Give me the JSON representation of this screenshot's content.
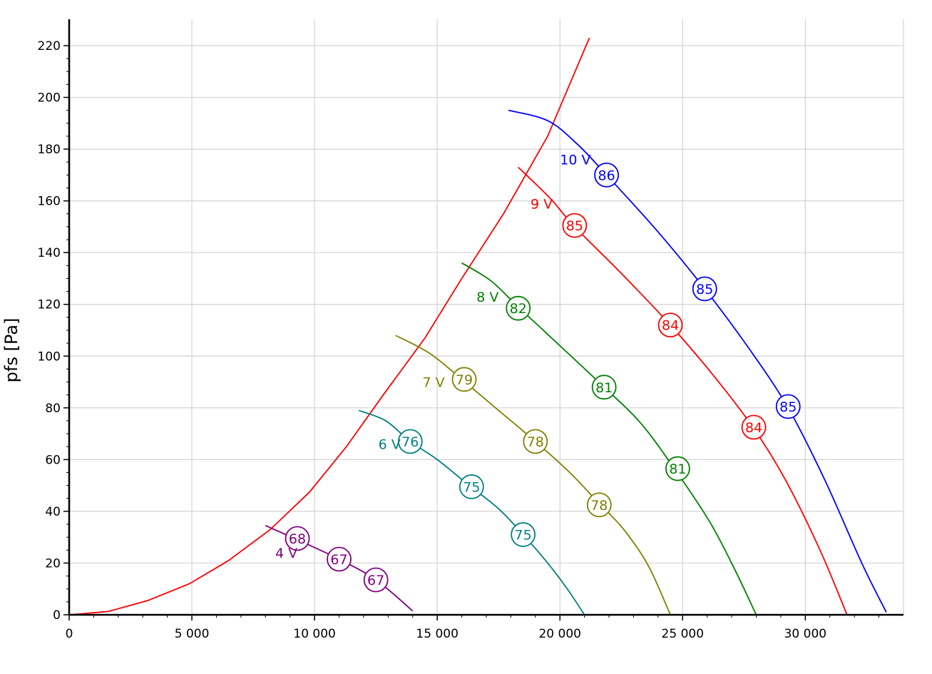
{
  "chart_data": {
    "type": "line",
    "ylabel": "pfs [Pa]",
    "xlabel": "",
    "xlim": [
      0,
      34000
    ],
    "ylim": [
      0,
      220
    ],
    "x_ticks": [
      0,
      5000,
      10000,
      15000,
      20000,
      25000,
      30000
    ],
    "x_tick_labels": [
      "0",
      "5 000",
      "10 000",
      "15 000",
      "20 000",
      "25 000",
      "30 000"
    ],
    "y_ticks": [
      0,
      20,
      40,
      60,
      80,
      100,
      120,
      140,
      160,
      180,
      200,
      220
    ],
    "y_tick_labels": [
      "0",
      "20",
      "40",
      "60",
      "80",
      "100",
      "120",
      "140",
      "160",
      "180",
      "200",
      "220"
    ],
    "grid": true,
    "system_curve": {
      "color": "#ff0000",
      "points": [
        [
          0,
          0
        ],
        [
          1600,
          1.3
        ],
        [
          3200,
          5.5
        ],
        [
          4900,
          12
        ],
        [
          6500,
          21
        ],
        [
          8200,
          33
        ],
        [
          9800,
          47.5
        ],
        [
          11300,
          65
        ],
        [
          12800,
          85
        ],
        [
          14500,
          107
        ],
        [
          16000,
          130
        ],
        [
          17700,
          155
        ],
        [
          19500,
          185
        ],
        [
          21200,
          223
        ]
      ]
    },
    "series": [
      {
        "name": "4 V",
        "color": "#800080",
        "points": [
          [
            8000,
            34.5
          ],
          [
            9300,
            29
          ],
          [
            11000,
            21.5
          ],
          [
            12500,
            13.5
          ],
          [
            14000,
            1.5
          ]
        ],
        "markers": [
          {
            "x": 9300,
            "y": 29.5,
            "label": "68"
          },
          {
            "x": 11000,
            "y": 21.5,
            "label": "67"
          },
          {
            "x": 12500,
            "y": 13.5,
            "label": "67"
          }
        ]
      },
      {
        "name": "6 V",
        "color": "#008080",
        "points": [
          [
            11800,
            79
          ],
          [
            12900,
            75
          ],
          [
            13900,
            67
          ],
          [
            15000,
            60
          ],
          [
            16300,
            50
          ],
          [
            17500,
            41
          ],
          [
            18500,
            31
          ],
          [
            19500,
            20
          ],
          [
            20300,
            10
          ],
          [
            21000,
            0
          ]
        ],
        "markers": [
          {
            "x": 13900,
            "y": 67,
            "label": "76"
          },
          {
            "x": 16400,
            "y": 49.5,
            "label": "75"
          },
          {
            "x": 18500,
            "y": 31,
            "label": "75"
          }
        ]
      },
      {
        "name": "7 V",
        "color": "#808000",
        "points": [
          [
            13300,
            108
          ],
          [
            14700,
            101
          ],
          [
            16000,
            91
          ],
          [
            17500,
            79
          ],
          [
            19000,
            67
          ],
          [
            20400,
            55
          ],
          [
            21600,
            43
          ],
          [
            22600,
            33
          ],
          [
            23600,
            19
          ],
          [
            24500,
            0
          ]
        ],
        "markers": [
          {
            "x": 16100,
            "y": 91,
            "label": "79"
          },
          {
            "x": 19000,
            "y": 67,
            "label": "78"
          },
          {
            "x": 21600,
            "y": 42.5,
            "label": "78"
          }
        ]
      },
      {
        "name": "8 V",
        "color": "#008000",
        "points": [
          [
            16000,
            136
          ],
          [
            17200,
            129
          ],
          [
            18300,
            119
          ],
          [
            20000,
            104
          ],
          [
            21800,
            88
          ],
          [
            23300,
            74
          ],
          [
            24700,
            56
          ],
          [
            26100,
            36
          ],
          [
            27100,
            18
          ],
          [
            28000,
            0
          ]
        ],
        "markers": [
          {
            "x": 18300,
            "y": 118.5,
            "label": "82"
          },
          {
            "x": 21800,
            "y": 88,
            "label": "81"
          },
          {
            "x": 24800,
            "y": 56.5,
            "label": "81"
          }
        ]
      },
      {
        "name": "9 V",
        "color": "#ff0000",
        "points": [
          [
            18300,
            173
          ],
          [
            19600,
            161
          ],
          [
            20600,
            150
          ],
          [
            22500,
            132
          ],
          [
            24500,
            112
          ],
          [
            26300,
            92
          ],
          [
            27900,
            72
          ],
          [
            29200,
            52
          ],
          [
            30600,
            25
          ],
          [
            31700,
            0
          ]
        ],
        "markers": [
          {
            "x": 20600,
            "y": 150.5,
            "label": "85"
          },
          {
            "x": 24500,
            "y": 112,
            "label": "84"
          },
          {
            "x": 27900,
            "y": 72.5,
            "label": "84"
          }
        ]
      },
      {
        "name": "10 V",
        "color": "#0000ff",
        "points": [
          [
            17900,
            195
          ],
          [
            19500,
            191
          ],
          [
            20700,
            182
          ],
          [
            21900,
            170
          ],
          [
            24000,
            148
          ],
          [
            25900,
            126
          ],
          [
            27700,
            103
          ],
          [
            29300,
            80
          ],
          [
            30800,
            52
          ],
          [
            32300,
            20
          ],
          [
            33300,
            1
          ]
        ],
        "markers": [
          {
            "x": 21900,
            "y": 170,
            "label": "86"
          },
          {
            "x": 25900,
            "y": 126,
            "label": "85"
          },
          {
            "x": 29300,
            "y": 80.5,
            "label": "85"
          }
        ]
      }
    ],
    "series_label_positions": [
      {
        "name": "4 V",
        "x": 8400,
        "y": 24
      },
      {
        "name": "6 V",
        "x": 12600,
        "y": 66
      },
      {
        "name": "7 V",
        "x": 14400,
        "y": 90
      },
      {
        "name": "8 V",
        "x": 16600,
        "y": 123
      },
      {
        "name": "9 V",
        "x": 18800,
        "y": 159
      },
      {
        "name": "10 V",
        "x": 20000,
        "y": 176
      }
    ]
  }
}
